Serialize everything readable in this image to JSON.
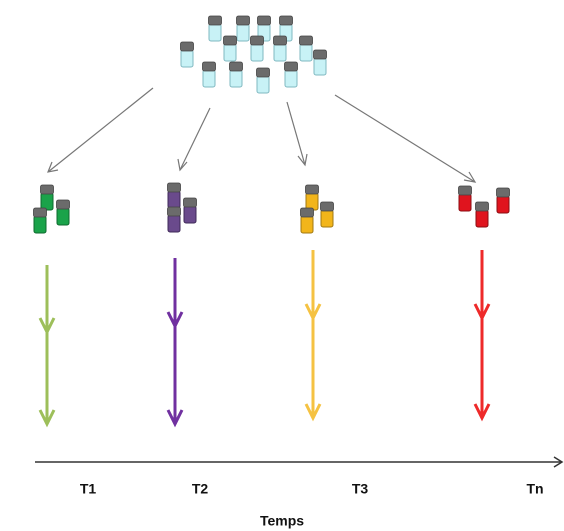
{
  "axis": {
    "label": "Temps",
    "ticks": [
      "T1",
      "T2",
      "T3",
      "Tn"
    ]
  }
}
